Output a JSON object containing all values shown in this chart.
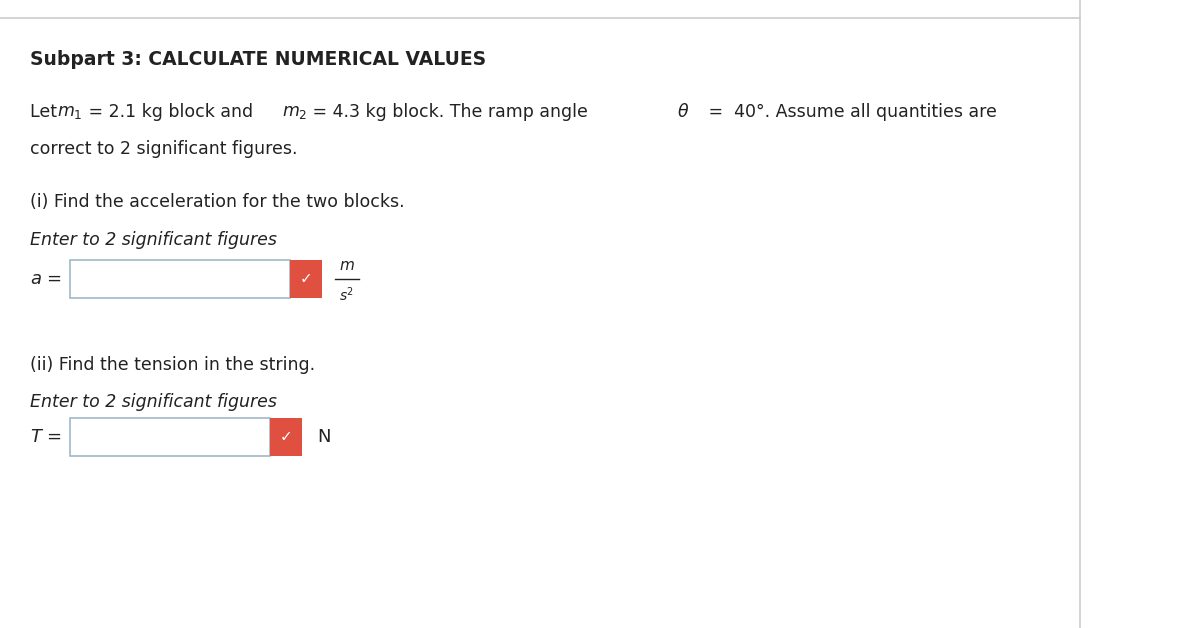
{
  "title": "Subpart 3: CALCULATE NUMERICAL VALUES",
  "bg_color": "#ffffff",
  "text_color": "#333333",
  "line1": "Let m₁ = 2.1 kg block and m₂ = 4.3 kg block. The ramp angle θ = 40°. Assume all quantities are",
  "line2": "correct to 2 significant figures.",
  "part_i_label": "(i) Find the acceleration for the two blocks.",
  "enter_i": "Enter to 2 significant figures",
  "a_label": "a =",
  "units_top": "m",
  "units_bot": "s²",
  "part_ii_label": "(ii) Find the tension in the string.",
  "enter_ii": "Enter to 2 significant figures",
  "t_label": "T =",
  "t_units": "N",
  "box_color": "#ffffff",
  "box_edge_color": "#a0b8c8",
  "check_bg": "#e05040",
  "check_fg": "#ffffff",
  "top_line_color": "#cccccc",
  "right_line_color": "#cccccc"
}
